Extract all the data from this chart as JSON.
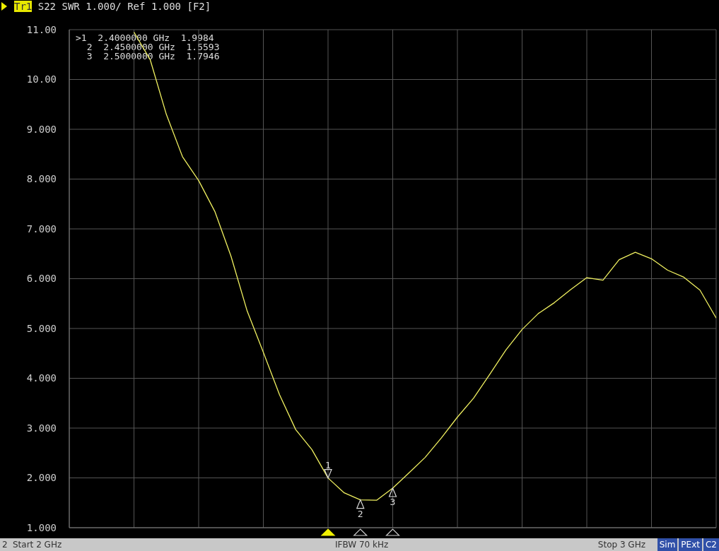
{
  "chart_data": {
    "type": "line",
    "title": "Tr1 S22 SWR 1.000/ Ref 1.000 [F2]",
    "categories": [
      null,
      null,
      null,
      null,
      null,
      null,
      null,
      null,
      null,
      null,
      null,
      null,
      null,
      null,
      null,
      null,
      null,
      null,
      null,
      null,
      null,
      null,
      null,
      null,
      null,
      null,
      null,
      null,
      null,
      null,
      null,
      null,
      null,
      null,
      null,
      null,
      null,
      null,
      null,
      null,
      null
    ],
    "series": [
      {
        "color": "#f0f060",
        "values": [
          null,
          null,
          null,
          null,
          10.95,
          10.4,
          9.3,
          8.45,
          7.97,
          7.35,
          6.45,
          5.35,
          4.52,
          3.67,
          2.97,
          2.57,
          1.9984,
          1.7,
          1.5593,
          1.55,
          1.7946,
          2.1,
          2.41,
          2.8,
          3.22,
          3.6,
          4.08,
          4.57,
          4.98,
          5.3,
          5.52,
          5.78,
          6.02,
          5.97,
          6.38,
          6.53,
          6.4,
          6.17,
          6.03,
          5.77,
          5.21
        ]
      }
    ],
    "ylim": [
      1,
      11
    ],
    "yticks": [
      {
        "value": 1,
        "label": "1.000"
      },
      {
        "value": 2,
        "label": "2.000"
      },
      {
        "value": 3,
        "label": "3.000"
      },
      {
        "value": 4,
        "label": "4.000"
      },
      {
        "value": 5,
        "label": "5.000"
      },
      {
        "value": 6,
        "label": "6.000"
      },
      {
        "value": 7,
        "label": "7.000"
      },
      {
        "value": 8,
        "label": "8.000"
      },
      {
        "value": 9,
        "label": "9.000"
      },
      {
        "value": 10,
        "label": "10.00"
      },
      {
        "value": 11,
        "label": "11.00"
      }
    ],
    "grid": true,
    "legend": false,
    "marker": "none",
    "line_style": "solid",
    "annotations": [
      ">1  2.4000000 GHz  1.9984",
      "  2  2.4500000 GHz  1.5593",
      "  3  2.5000000 GHz  1.7946",
      "2",
      "Start 2 GHz",
      "IFBW 70 kHz",
      "Stop 3 GHz",
      "Sim",
      "PExt",
      "C2",
      {
        "text": "1",
        "y": 1.9984
      },
      {
        "text": "2",
        "y": 1.5593
      },
      {
        "text": "3",
        "y": 1.7946
      }
    ]
  }
}
